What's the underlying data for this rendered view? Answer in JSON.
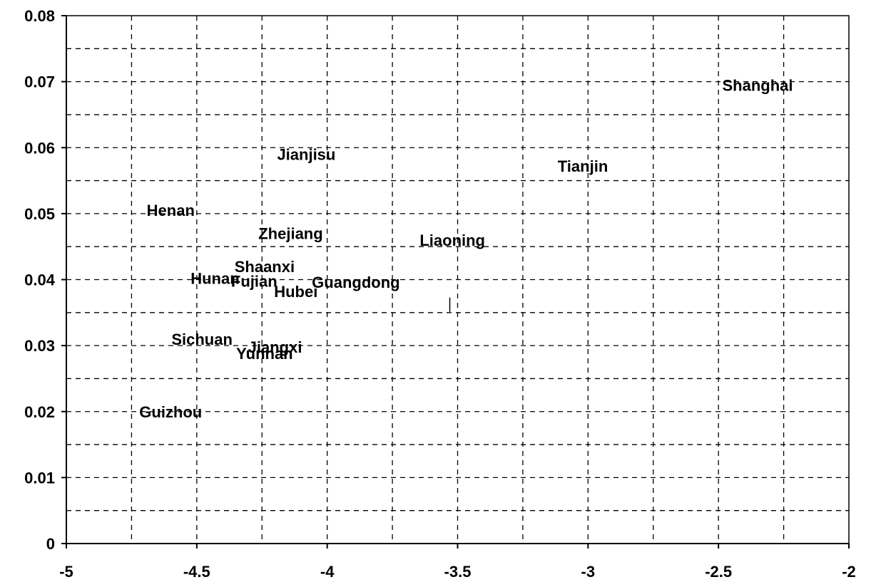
{
  "chart_data": {
    "type": "scatter",
    "title": "",
    "xlabel": "",
    "ylabel": "",
    "xlim": [
      -5,
      -2
    ],
    "ylim": [
      0,
      0.08
    ],
    "x_ticks": [
      -5,
      -4.5,
      -4,
      -3.5,
      -3,
      -2.5,
      -2
    ],
    "x_tick_labels": [
      "-5",
      "-4.5",
      "-4",
      "-3.5",
      "-3",
      "-2.5",
      "-2"
    ],
    "y_ticks": [
      0,
      0.01,
      0.02,
      0.03,
      0.04,
      0.05,
      0.06,
      0.07,
      0.08
    ],
    "y_tick_labels": [
      "0",
      "0.01",
      "0.02",
      "0.03",
      "0.04",
      "0.05",
      "0.06",
      "0.07",
      "0.08"
    ],
    "grid": true,
    "points": [
      {
        "label": "Shanghai",
        "x": -2.35,
        "y": 0.0695
      },
      {
        "label": "Jianjisu",
        "x": -4.08,
        "y": 0.059
      },
      {
        "label": "Tianjin",
        "x": -3.02,
        "y": 0.0572
      },
      {
        "label": "Henan",
        "x": -4.6,
        "y": 0.0505
      },
      {
        "label": "Zhejiang",
        "x": -4.14,
        "y": 0.047
      },
      {
        "label": "Liaoning",
        "x": -3.52,
        "y": 0.046
      },
      {
        "label": "Shaanxi",
        "x": -4.24,
        "y": 0.042
      },
      {
        "label": "Hunan",
        "x": -4.43,
        "y": 0.0402
      },
      {
        "label": "Fujian",
        "x": -4.28,
        "y": 0.0398
      },
      {
        "label": "Guangdong",
        "x": -3.89,
        "y": 0.0396
      },
      {
        "label": "Hubei",
        "x": -4.12,
        "y": 0.0382
      },
      {
        "label": "Sichuan",
        "x": -4.48,
        "y": 0.031
      },
      {
        "label": "Jiangxi",
        "x": -4.2,
        "y": 0.0298
      },
      {
        "label": "Yunnan",
        "x": -4.24,
        "y": 0.0288
      },
      {
        "label": "Guizhou",
        "x": -4.6,
        "y": 0.02
      }
    ],
    "marker": {
      "x": -3.53,
      "y": 0.0362
    }
  }
}
